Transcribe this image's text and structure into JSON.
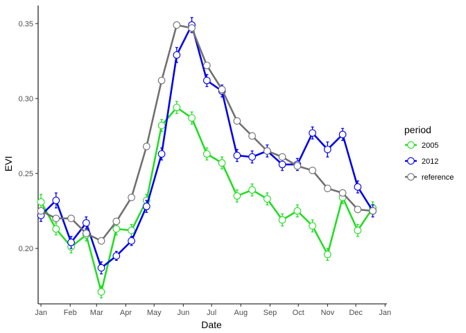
{
  "chart_data": {
    "type": "line",
    "xlabel": "Date",
    "ylabel": "EVI",
    "ylim": [
      0.163,
      0.362
    ],
    "xlim": [
      "2004-12-29",
      "2006-01-03"
    ],
    "y_ticks": [
      0.2,
      0.25,
      0.3,
      0.35
    ],
    "y_tick_labels": [
      "0.20",
      "0.25",
      "0.30",
      "0.35"
    ],
    "x_ticks": [
      "2005-01-01",
      "2005-02-01",
      "2005-03-01",
      "2005-04-01",
      "2005-05-01",
      "2005-06-01",
      "2005-07-01",
      "2005-08-01",
      "2005-09-01",
      "2005-10-01",
      "2005-11-01",
      "2005-12-01",
      "2006-01-01"
    ],
    "x_tick_labels": [
      "Jan",
      "Feb",
      "Mar",
      "Apr",
      "May",
      "Jun",
      "Jul",
      "Aug",
      "Sep",
      "Oct",
      "Nov",
      "Dec",
      "Jan"
    ],
    "grid": false,
    "legend": {
      "title": "period",
      "position": "right"
    },
    "x_dates": [
      "2005-01-01",
      "2005-01-17",
      "2005-02-02",
      "2005-02-18",
      "2005-03-06",
      "2005-03-22",
      "2005-04-07",
      "2005-04-23",
      "2005-05-09",
      "2005-05-25",
      "2005-06-10",
      "2005-06-26",
      "2005-07-12",
      "2005-07-28",
      "2005-08-13",
      "2005-08-29",
      "2005-09-14",
      "2005-09-30",
      "2005-10-16",
      "2005-11-01",
      "2005-11-17",
      "2005-12-03",
      "2005-12-19"
    ],
    "series": [
      {
        "name": "2005",
        "color": "#22dd22",
        "values": [
          0.231,
          0.213,
          0.201,
          0.209,
          0.171,
          0.213,
          0.212,
          0.232,
          0.282,
          0.294,
          0.287,
          0.263,
          0.257,
          0.235,
          0.239,
          0.233,
          0.219,
          0.225,
          0.215,
          0.196,
          0.234,
          0.212,
          0.227
        ],
        "errors": [
          0.005,
          0.004,
          0.004,
          0.004,
          0.004,
          0.004,
          0.004,
          0.004,
          0.004,
          0.004,
          0.004,
          0.004,
          0.004,
          0.004,
          0.004,
          0.004,
          0.004,
          0.004,
          0.004,
          0.004,
          0.004,
          0.004,
          0.004
        ]
      },
      {
        "name": "2012",
        "color": "#0000ee",
        "values": [
          0.222,
          0.232,
          0.204,
          0.217,
          0.187,
          0.195,
          0.205,
          0.228,
          0.263,
          0.329,
          0.349,
          0.312,
          0.305,
          0.262,
          0.261,
          0.265,
          0.256,
          0.256,
          0.277,
          0.266,
          0.276,
          0.241,
          0.225
        ],
        "errors": [
          0.004,
          0.005,
          0.004,
          0.004,
          0.004,
          0.003,
          0.003,
          0.004,
          0.004,
          0.005,
          0.005,
          0.004,
          0.004,
          0.004,
          0.004,
          0.004,
          0.004,
          0.004,
          0.004,
          0.005,
          0.004,
          0.004,
          0.004
        ]
      },
      {
        "name": "reference",
        "color": "#707070",
        "values": [
          0.225,
          0.22,
          0.22,
          0.21,
          0.205,
          0.218,
          0.234,
          0.268,
          0.312,
          0.349,
          0.347,
          0.322,
          0.306,
          0.285,
          0.275,
          0.265,
          0.261,
          0.255,
          0.252,
          0.24,
          0.237,
          0.226,
          0.225
        ]
      }
    ]
  }
}
